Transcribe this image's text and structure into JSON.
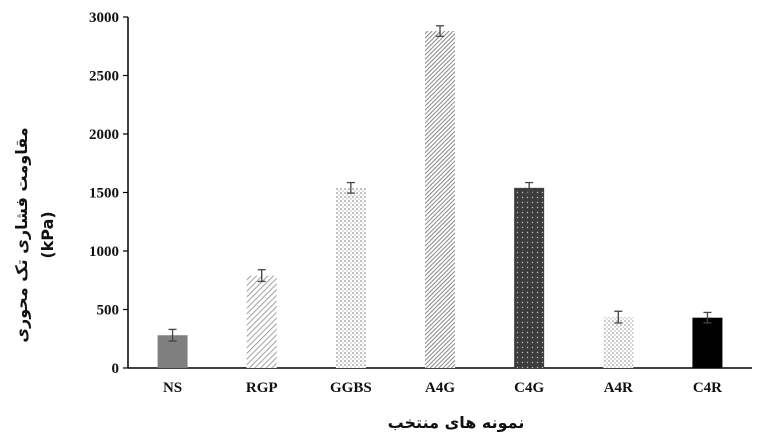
{
  "chart_data": {
    "type": "bar",
    "title": "",
    "xlabel": "نمونه های منتخب",
    "ylabel": "مقاومت فشاری تک محوری",
    "ylabel_unit": "(kPa)",
    "categories": [
      "NS",
      "RGP",
      "GGBS",
      "A4G",
      "C4G",
      "A4R",
      "C4R"
    ],
    "values": [
      280,
      790,
      1540,
      2880,
      1540,
      435,
      430
    ],
    "errors": [
      50,
      50,
      45,
      45,
      45,
      50,
      45
    ],
    "patterns": [
      "solid-gray",
      "hatch-light",
      "dots-fine",
      "hatch-dense",
      "dark-dots",
      "dots-light",
      "solid-black"
    ],
    "ylim": [
      0,
      3000
    ],
    "yticks": [
      0,
      500,
      1000,
      1500,
      2000,
      2500,
      3000
    ],
    "grid": false,
    "legend": "none"
  }
}
